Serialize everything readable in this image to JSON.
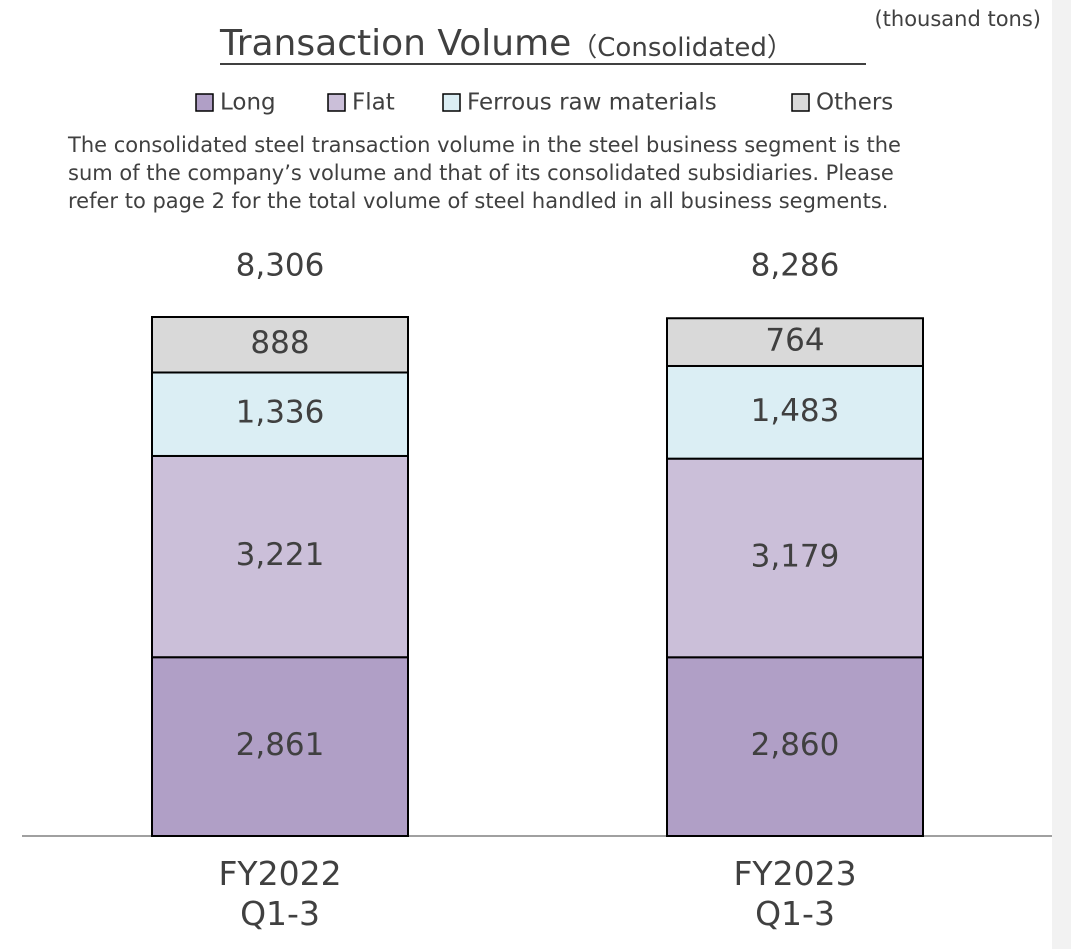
{
  "chart_data": {
    "type": "stacked_bar",
    "title": "Transaction Volume",
    "subtitle": "（Consolidated）",
    "unit": "(thousand tons)",
    "description": [
      "The consolidated steel transaction volume in the steel business segment is the",
      "sum of the company’s volume and that of its consolidated subsidiaries. Please",
      "refer to page 2 for the total volume of steel handled in all business segments."
    ],
    "categories": [
      "FY2022\nQ1-3",
      "FY2023\nQ1-3"
    ],
    "series": [
      {
        "name": "Long",
        "color": "#b09fc6",
        "values": [
          2861,
          2860
        ],
        "value_labels": [
          "2,861",
          "2,860"
        ]
      },
      {
        "name": "Flat",
        "color": "#cbbfd9",
        "values": [
          3221,
          3179
        ],
        "value_labels": [
          "3,221",
          "3,179"
        ]
      },
      {
        "name": "Ferrous raw materials",
        "color": "#dbeef4",
        "values": [
          1336,
          1483
        ],
        "value_labels": [
          "1,336",
          "1,483"
        ]
      },
      {
        "name": "Others",
        "color": "#d9d9d9",
        "values": [
          888,
          764
        ],
        "value_labels": [
          "888",
          "764"
        ]
      }
    ],
    "totals": [
      8306,
      8286
    ],
    "total_labels": [
      "8,306",
      "8,286"
    ]
  }
}
